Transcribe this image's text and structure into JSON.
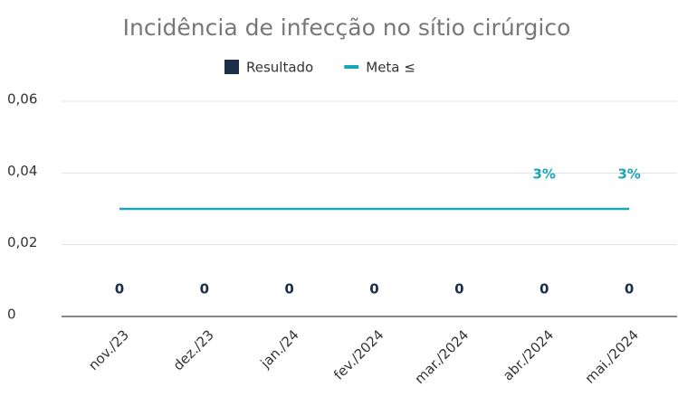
{
  "chart_data": {
    "type": "bar",
    "title": "Incidência de infecção no sítio cirúrgico",
    "categories": [
      "nov./23",
      "dez./23",
      "jan./24",
      "fev./2024",
      "mar./2024",
      "abr./2024",
      "mai./2024"
    ],
    "series": [
      {
        "name": "Resultado",
        "type": "bar",
        "color": "#1c2e4a",
        "values": [
          0,
          0,
          0,
          0,
          0,
          0,
          0
        ]
      },
      {
        "name": "Meta ≤",
        "type": "line",
        "color": "#1aa6b7",
        "values": [
          0.03,
          0.03,
          0.03,
          0.03,
          0.03,
          0.03,
          0.03
        ],
        "value_labels": [
          null,
          null,
          null,
          null,
          null,
          "3%",
          "3%"
        ]
      }
    ],
    "ylim": [
      0,
      0.06
    ],
    "yticks": [
      0,
      {
        "value": 0.02,
        "label": "0,02"
      },
      {
        "value": 0.04,
        "label": "0,04"
      },
      {
        "value": 0.06,
        "label": "0,06"
      }
    ],
    "grid": true,
    "legend": "top"
  }
}
